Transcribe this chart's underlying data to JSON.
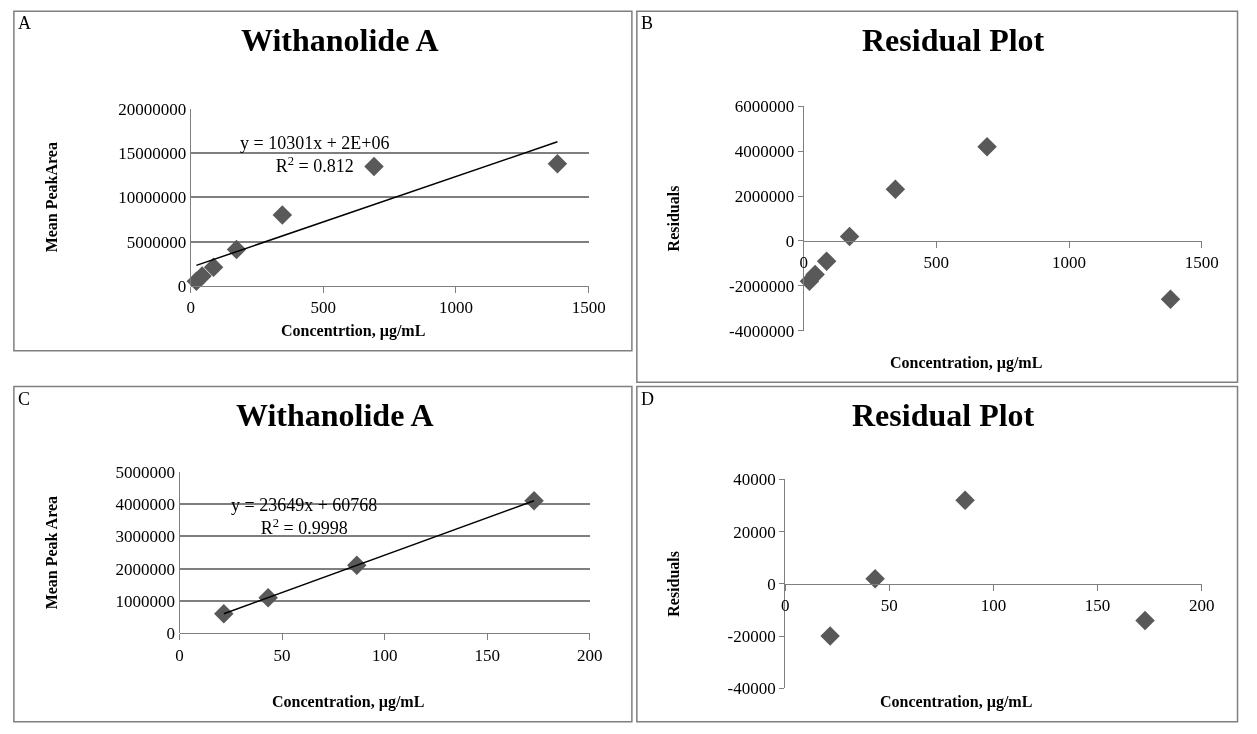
{
  "chart_data": [
    {
      "type": "scatter",
      "title": "Withanolide A",
      "xlabel": "Concentrtion, µg/mL",
      "ylabel": "Mean PeakArea",
      "xlim": [
        0,
        1500
      ],
      "xticks": [
        0,
        500,
        1000,
        1500
      ],
      "ylim": [
        0,
        20000000
      ],
      "yticks": [
        0,
        5000000,
        10000000,
        15000000,
        20000000
      ],
      "grid": "y",
      "marker": "diamond",
      "series": [
        {
          "x": [
            21.6,
            43.2,
            86.4,
            172.8,
            345.6,
            691.2,
            1382.4
          ],
          "values": [
            500000,
            1100000,
            2100000,
            4100000,
            8000000,
            13500000,
            13800000
          ],
          "color": "#595959"
        },
        {
          "type": "line",
          "x": [
            21.6,
            1382.4
          ],
          "values": [
            2300000,
            16300000
          ],
          "color": "#000000",
          "marker": "none"
        }
      ],
      "annotations": [
        "A",
        "y = 10301x + 2E+06\nR$^{2}$ = 0.812"
      ]
    },
    {
      "type": "scatter",
      "title": "Residual Plot",
      "xlabel": "Concentration, µg/mL",
      "ylabel": "Residuals",
      "xlim": [
        0,
        1500
      ],
      "xticks": [
        0,
        500,
        1000,
        1500
      ],
      "ylim": [
        -4000000,
        6000000
      ],
      "yticks": [
        -4000000,
        -2000000,
        0,
        2000000,
        4000000,
        6000000
      ],
      "marker": "diamond",
      "series": [
        {
          "x": [
            21.6,
            43.2,
            86.4,
            172.8,
            345.6,
            691.2,
            1382.4
          ],
          "values": [
            -1800000,
            -1500000,
            -900000,
            200000,
            2300000,
            4200000,
            -2600000
          ],
          "color": "#595959"
        }
      ],
      "annotations": [
        "B"
      ]
    },
    {
      "type": "scatter",
      "title": "Withanolide A",
      "xlabel": "Concentration, µg/mL",
      "ylabel": "Mean Peak Area",
      "xlim": [
        0,
        200
      ],
      "xticks": [
        0,
        50,
        100,
        150,
        200
      ],
      "ylim": [
        0,
        5000000
      ],
      "yticks": [
        0,
        1000000,
        2000000,
        3000000,
        4000000,
        5000000
      ],
      "grid": "y",
      "marker": "diamond",
      "series": [
        {
          "x": [
            21.6,
            43.2,
            86.4,
            172.8
          ],
          "values": [
            600000,
            1100000,
            2100000,
            4100000
          ],
          "color": "#595959"
        },
        {
          "type": "line",
          "x": [
            21.6,
            172.8
          ],
          "values": [
            600000,
            4100000
          ],
          "color": "#000000",
          "marker": "none"
        }
      ],
      "annotations": [
        "C",
        "y = 23649x + 60768\nR$^{2}$ = 0.9998"
      ]
    },
    {
      "type": "scatter",
      "title": "Residual Plot",
      "xlabel": "Concentration, µg/mL",
      "ylabel": "Residuals",
      "xlim": [
        0,
        200
      ],
      "xticks": [
        0,
        50,
        100,
        150,
        200
      ],
      "ylim": [
        -40000,
        40000
      ],
      "yticks": [
        -40000,
        -20000,
        0,
        20000,
        40000
      ],
      "marker": "diamond",
      "series": [
        {
          "x": [
            21.6,
            43.2,
            86.4,
            172.8
          ],
          "values": [
            -20000,
            2000,
            32000,
            -14000
          ],
          "color": "#595959"
        }
      ],
      "annotations": [
        "D"
      ]
    }
  ]
}
